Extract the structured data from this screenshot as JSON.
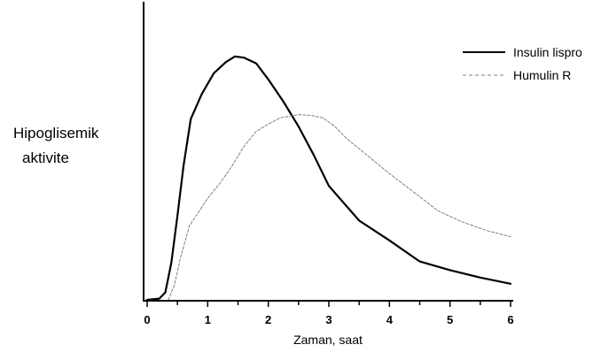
{
  "chart_data": {
    "type": "line",
    "title": "",
    "xlabel": "Zaman, saat",
    "ylabel_lines": [
      "Hipoglisemik",
      "aktivite"
    ],
    "xlim": [
      0,
      6
    ],
    "ylim": [
      0,
      100
    ],
    "x_ticks": [
      0,
      1,
      2,
      3,
      4,
      5,
      6
    ],
    "x_tick_labels": [
      "0",
      "1",
      "2",
      "3",
      "4",
      "5",
      "6"
    ],
    "y_ticks_shown": false,
    "grid": false,
    "legend_position": "top-right",
    "series": [
      {
        "name": "Insulin lispro",
        "style": "solid",
        "color": "#000000",
        "points": [
          [
            0,
            0
          ],
          [
            0.2,
            0.5
          ],
          [
            0.3,
            3
          ],
          [
            0.4,
            15
          ],
          [
            0.5,
            34
          ],
          [
            0.6,
            54
          ],
          [
            0.72,
            73
          ],
          [
            0.9,
            83
          ],
          [
            1.1,
            91.5
          ],
          [
            1.3,
            96
          ],
          [
            1.45,
            98.3
          ],
          [
            1.6,
            97.8
          ],
          [
            1.8,
            95.5
          ],
          [
            2.0,
            89
          ],
          [
            2.25,
            80
          ],
          [
            2.5,
            70
          ],
          [
            2.75,
            58.5
          ],
          [
            3.0,
            46
          ],
          [
            3.5,
            32
          ],
          [
            4.0,
            24
          ],
          [
            4.5,
            15.5
          ],
          [
            5.0,
            12
          ],
          [
            5.5,
            9
          ],
          [
            6.0,
            6.5
          ]
        ]
      },
      {
        "name": "Humulin R",
        "style": "dashed",
        "color": "#808080",
        "points": [
          [
            0.35,
            0
          ],
          [
            0.45,
            6
          ],
          [
            0.55,
            17
          ],
          [
            0.7,
            30
          ],
          [
            0.85,
            35.5
          ],
          [
            1.0,
            41
          ],
          [
            1.2,
            47
          ],
          [
            1.4,
            54
          ],
          [
            1.6,
            62
          ],
          [
            1.8,
            68
          ],
          [
            2.0,
            71
          ],
          [
            2.2,
            73.5
          ],
          [
            2.5,
            74.8
          ],
          [
            2.7,
            74.5
          ],
          [
            2.9,
            73.5
          ],
          [
            3.1,
            70
          ],
          [
            3.3,
            65
          ],
          [
            3.6,
            59
          ],
          [
            4.0,
            51
          ],
          [
            4.4,
            43.5
          ],
          [
            4.8,
            36
          ],
          [
            5.2,
            31.5
          ],
          [
            5.6,
            28
          ],
          [
            6.0,
            25.5
          ]
        ]
      }
    ]
  }
}
